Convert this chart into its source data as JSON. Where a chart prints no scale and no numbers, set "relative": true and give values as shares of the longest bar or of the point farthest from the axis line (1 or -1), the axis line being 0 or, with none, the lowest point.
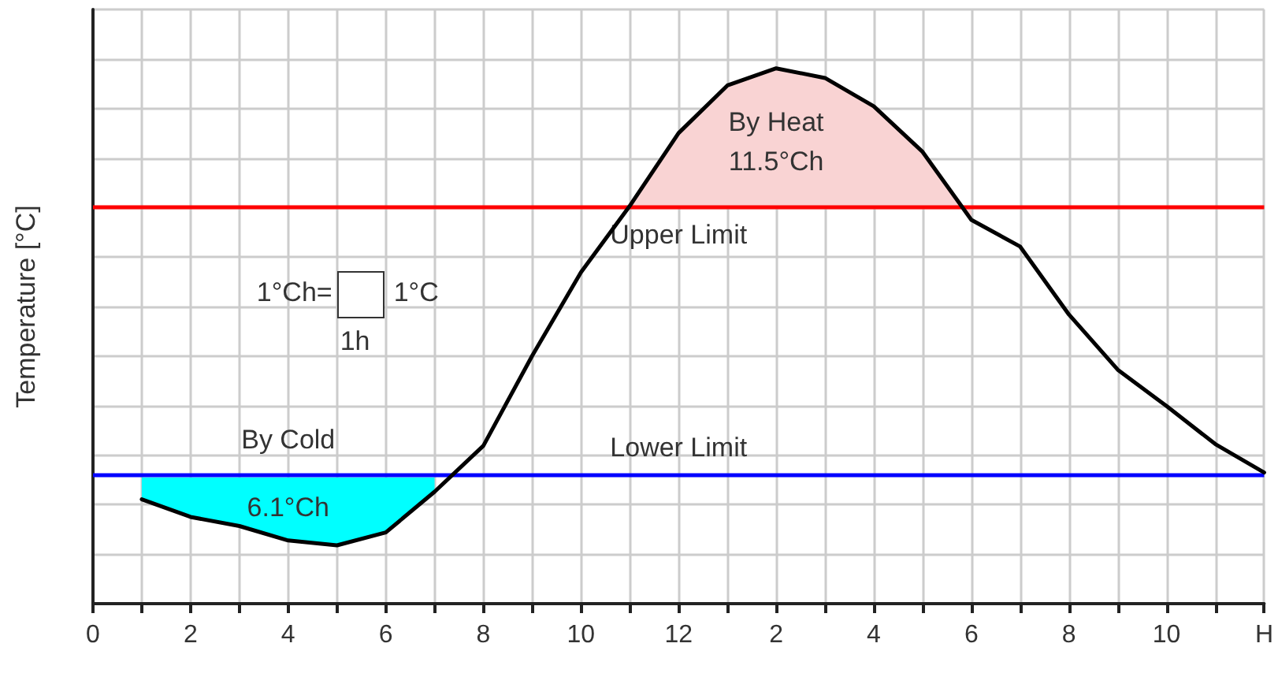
{
  "chart_data": {
    "type": "line",
    "relative": true,
    "ylabel": "Temperature [°C]",
    "categories": [
      "0",
      null,
      "2",
      null,
      "4",
      null,
      "6",
      null,
      "8",
      null,
      "10",
      null,
      "12",
      null,
      "2",
      null,
      "4",
      null,
      "6",
      null,
      "8",
      null,
      "10",
      null,
      "H"
    ],
    "grid": true,
    "marker": "none",
    "line_style": "solid",
    "series": [
      {
        "color": "#000000",
        "values": [
          null,
          0.195,
          0.162,
          0.145,
          0.118,
          0.109,
          0.133,
          0.209,
          0.295,
          0.463,
          0.619,
          0.743,
          0.879,
          0.968,
          1.0,
          0.982,
          0.929,
          0.844,
          0.717,
          0.667,
          0.54,
          0.437,
          0.369,
          0.298,
          0.245
        ]
      },
      {
        "type": "area",
        "color": "#f9d3d3",
        "values": [
          null,
          null,
          null,
          null,
          null,
          null,
          null,
          null,
          null,
          null,
          null,
          0.743,
          0.879,
          0.968,
          1.0,
          0.982,
          0.929,
          0.844,
          0.717,
          null,
          null,
          null,
          null,
          null,
          null
        ]
      },
      {
        "type": "area",
        "color": "#00ffff",
        "values": [
          null,
          0.236,
          0.236,
          0.236,
          0.236,
          0.236,
          0.236,
          0.236,
          null,
          null,
          null,
          null,
          null,
          null,
          null,
          null,
          null,
          null,
          null,
          null,
          null,
          null,
          null,
          null,
          null
        ]
      }
    ],
    "ref_lines": [
      {
        "axis": "y",
        "value": 0.743,
        "label": "Upper Limit",
        "color": "#ff0000"
      },
      {
        "axis": "y",
        "value": 0.236,
        "label": "Lower Limit",
        "color": "#0000ff"
      }
    ],
    "annotations": [
      "By Heat",
      "11.5°Ch",
      "By Cold",
      "6.1°Ch",
      "1°Ch=",
      "1°C",
      "1h"
    ]
  }
}
